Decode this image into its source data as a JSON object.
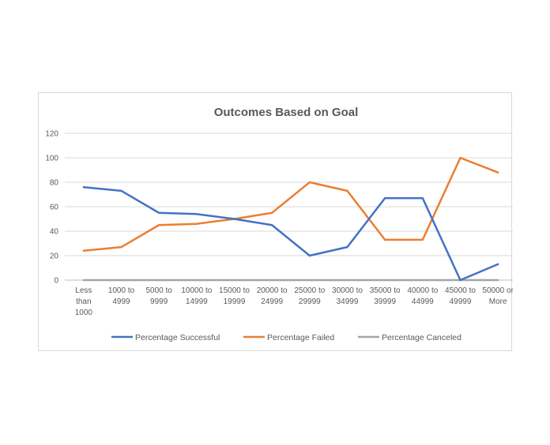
{
  "chart_data": {
    "type": "line",
    "title": "Outcomes Based on Goal",
    "xlabel": "",
    "ylabel": "",
    "ylim": [
      0,
      120
    ],
    "yticks": [
      0,
      20,
      40,
      60,
      80,
      100,
      120
    ],
    "grid": true,
    "legend_position": "bottom",
    "categories": [
      "Less than 1000",
      "1000 to 4999",
      "5000 to 9999",
      "10000 to 14999",
      "15000 to 19999",
      "20000 to 24999",
      "25000 to 29999",
      "30000 to 34999",
      "35000 to 39999",
      "40000 to 44999",
      "45000 to 49999",
      "50000 or More"
    ],
    "category_lines": [
      [
        "Less",
        "than",
        "1000"
      ],
      [
        "1000 to",
        "4999"
      ],
      [
        "5000 to",
        "9999"
      ],
      [
        "10000 to",
        "14999"
      ],
      [
        "15000 to",
        "19999"
      ],
      [
        "20000 to",
        "24999"
      ],
      [
        "25000 to",
        "29999"
      ],
      [
        "30000 to",
        "34999"
      ],
      [
        "35000 to",
        "39999"
      ],
      [
        "40000 to",
        "44999"
      ],
      [
        "45000 to",
        "49999"
      ],
      [
        "50000 or",
        "More"
      ]
    ],
    "series": [
      {
        "name": "Percentage Successful",
        "color": "#4472c4",
        "values": [
          76,
          73,
          55,
          54,
          50,
          45,
          20,
          27,
          67,
          67,
          0,
          13
        ]
      },
      {
        "name": "Percentage Failed",
        "color": "#ed7d31",
        "values": [
          24,
          27,
          45,
          46,
          50,
          55,
          80,
          73,
          33,
          33,
          100,
          88
        ]
      },
      {
        "name": "Percentage Canceled",
        "color": "#a5a5a5",
        "values": [
          0,
          0,
          0,
          0,
          0,
          0,
          0,
          0,
          0,
          0,
          0,
          0
        ]
      }
    ]
  }
}
